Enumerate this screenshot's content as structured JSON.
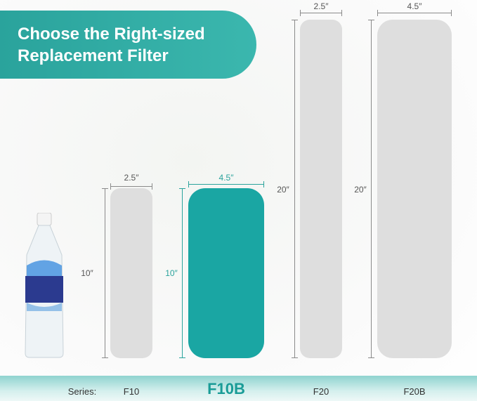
{
  "header": {
    "line1": "Choose the Right-sized",
    "line2": "Replacement Filter"
  },
  "filters": [
    {
      "series": "F10",
      "width": "2.5″",
      "height": "10″",
      "highlighted": false
    },
    {
      "series": "F10B",
      "width": "4.5″",
      "height": "10″",
      "highlighted": true
    },
    {
      "series": "F20",
      "width": "2.5″",
      "height": "20″",
      "highlighted": false
    },
    {
      "series": "F20B",
      "width": "4.5″",
      "height": "20″",
      "highlighted": false
    }
  ],
  "series_label": "Series:",
  "colors": {
    "accent": "#1aa6a3",
    "filter_gray": "#dedede"
  }
}
